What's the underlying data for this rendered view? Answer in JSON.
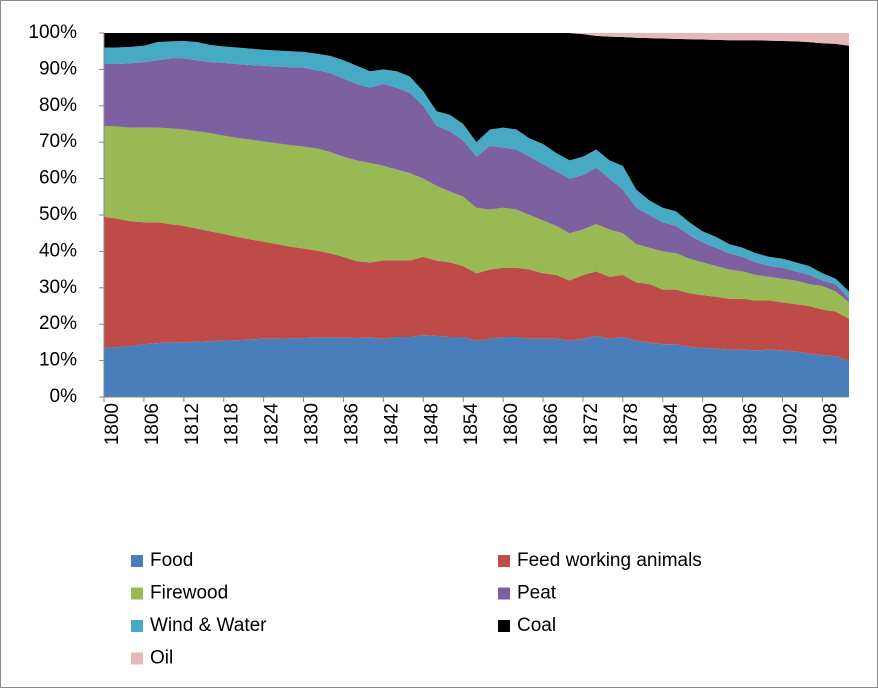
{
  "chart_data": {
    "type": "area",
    "stacked": true,
    "categories": [
      "1800",
      null,
      null,
      "1806",
      null,
      null,
      "1812",
      null,
      null,
      "1818",
      null,
      null,
      "1824",
      null,
      null,
      "1830",
      null,
      null,
      "1836",
      null,
      null,
      "1842",
      null,
      null,
      "1848",
      null,
      null,
      "1854",
      null,
      null,
      "1860",
      null,
      null,
      "1866",
      null,
      null,
      "1872",
      null,
      null,
      "1878",
      null,
      null,
      "1884",
      null,
      null,
      "1890",
      null,
      null,
      "1896",
      null,
      null,
      "1902",
      null,
      null,
      "1908",
      null,
      null
    ],
    "series": [
      {
        "name": "Food",
        "color": "#4a7ebb",
        "values": [
          13.5,
          13.7,
          14,
          14.5,
          14.8,
          15,
          15,
          15.2,
          15.3,
          15.5,
          15.6,
          15.8,
          16,
          16,
          16.1,
          16.2,
          16.3,
          16.3,
          16.3,
          16.2,
          16.3,
          16,
          16.5,
          16.5,
          17,
          16.8,
          16.5,
          16.5,
          15.5,
          16,
          16.5,
          16.5,
          16,
          16,
          16,
          15.5,
          16,
          16.8,
          16,
          16.5,
          15.5,
          15,
          14.5,
          14.5,
          13.8,
          13.5,
          13.3,
          13,
          13,
          12.8,
          13,
          12.8,
          12.5,
          12,
          11.5,
          11.2,
          10
        ]
      },
      {
        "name": "Feed working animals",
        "color": "#be4b48",
        "values": [
          36,
          35.3,
          34.3,
          33.5,
          33.2,
          32.5,
          32,
          31.1,
          30.2,
          29.3,
          28.4,
          27.5,
          26.7,
          26,
          25.2,
          24.6,
          23.9,
          23.2,
          22.2,
          21.1,
          20.7,
          21.5,
          21,
          21,
          21.5,
          20.7,
          20.5,
          19.5,
          18.5,
          19,
          19,
          19,
          19,
          18,
          17.5,
          16.5,
          17.5,
          17.7,
          17,
          17,
          16,
          16,
          15,
          15,
          14.7,
          14.5,
          14.2,
          14,
          14,
          13.7,
          13.5,
          13.2,
          13,
          13,
          12.5,
          12.3,
          11.5
        ]
      },
      {
        "name": "Firewood",
        "color": "#98b954",
        "values": [
          25,
          25.3,
          25.7,
          26,
          26,
          26.3,
          26.5,
          26.7,
          27,
          27,
          27.2,
          27.4,
          27.5,
          27.7,
          27.9,
          28,
          28.1,
          27.8,
          27.5,
          27.7,
          27.3,
          26,
          25,
          24,
          21.5,
          20.5,
          19.5,
          19,
          18,
          16.5,
          16.5,
          16,
          15,
          14.5,
          13.5,
          13,
          12.5,
          13,
          13,
          11.5,
          10.5,
          10,
          10.5,
          10,
          9.5,
          9,
          8.5,
          8,
          7.5,
          7,
          6.5,
          6.5,
          6.5,
          6,
          6.5,
          5.5,
          4.5
        ]
      },
      {
        "name": "Peat",
        "color": "#7d60a0",
        "values": [
          17,
          17.2,
          17.7,
          18,
          18.5,
          19.2,
          19.5,
          19.5,
          19.5,
          20,
          20.3,
          20.5,
          20.8,
          21.1,
          21.4,
          21.7,
          21.5,
          21.7,
          21.5,
          21,
          20.7,
          22.5,
          22.5,
          22,
          20,
          16.5,
          16.5,
          15.5,
          14,
          17.5,
          16.5,
          16.5,
          16,
          15.5,
          15,
          15,
          15,
          15.5,
          14,
          12,
          10,
          9,
          8,
          7.5,
          6.5,
          5.5,
          5,
          4.5,
          4,
          3.5,
          3,
          3,
          2.5,
          2.5,
          1.5,
          2,
          1
        ]
      },
      {
        "name": "Wind & Water",
        "color": "#46aac5",
        "values": [
          4.5,
          4.5,
          4.5,
          4.5,
          5,
          4.7,
          4.8,
          5,
          4.7,
          4.5,
          4.5,
          4.5,
          4.4,
          4.4,
          4.4,
          4.3,
          4.5,
          4.7,
          5,
          5,
          4.5,
          4,
          4.5,
          4.5,
          4,
          4,
          4.5,
          4.5,
          4,
          4.5,
          5.5,
          5.5,
          5,
          5.5,
          5,
          5,
          5,
          5,
          5,
          6.5,
          5,
          4,
          4,
          4,
          3.5,
          3,
          3,
          2.5,
          2.5,
          2.5,
          2.5,
          2.5,
          2.5,
          2.5,
          2,
          1.5,
          2
        ]
      },
      {
        "name": "Coal",
        "color": "#000000",
        "values": [
          4,
          4,
          3.8,
          3.5,
          2.5,
          2.3,
          2.2,
          2.5,
          3.3,
          3.7,
          4,
          4.3,
          4.6,
          4.8,
          5,
          5.2,
          5.7,
          6.3,
          7.5,
          9,
          10.5,
          10,
          10.5,
          12,
          16,
          21.5,
          22.5,
          25,
          30,
          26.5,
          26,
          26.5,
          29,
          30.5,
          33,
          35,
          33.7,
          31.2,
          34,
          35.4,
          41.7,
          44.6,
          46.5,
          47.4,
          50.3,
          52.7,
          54.1,
          56,
          57,
          58.5,
          59.4,
          59.8,
          60.7,
          61.5,
          63.2,
          64.5,
          67.5
        ]
      },
      {
        "name": "Oil",
        "color": "#e6b9b8",
        "values": [
          0,
          0,
          0,
          0,
          0,
          0,
          0,
          0,
          0,
          0,
          0,
          0,
          0,
          0,
          0,
          0,
          0,
          0,
          0,
          0,
          0,
          0,
          0,
          0,
          0,
          0,
          0,
          0,
          0,
          0,
          0,
          0,
          0,
          0,
          0,
          0,
          0.3,
          0.8,
          1,
          1.1,
          1.3,
          1.4,
          1.5,
          1.6,
          1.7,
          1.8,
          1.9,
          2,
          2,
          2,
          2.1,
          2.2,
          2.3,
          2.5,
          2.8,
          3,
          3.5
        ]
      }
    ],
    "ylim": [
      0,
      100
    ],
    "yticks": [
      {
        "value": 0,
        "label": "0%"
      },
      {
        "value": 10,
        "label": "10%"
      },
      {
        "value": 20,
        "label": "20%"
      },
      {
        "value": 30,
        "label": "30%"
      },
      {
        "value": 40,
        "label": "40%"
      },
      {
        "value": 50,
        "label": "50%"
      },
      {
        "value": 60,
        "label": "60%"
      },
      {
        "value": 70,
        "label": "70%"
      },
      {
        "value": 80,
        "label": "80%"
      },
      {
        "value": 90,
        "label": "90%"
      },
      {
        "value": 100,
        "label": "100%"
      }
    ],
    "grid": false,
    "legend": "bottom"
  }
}
